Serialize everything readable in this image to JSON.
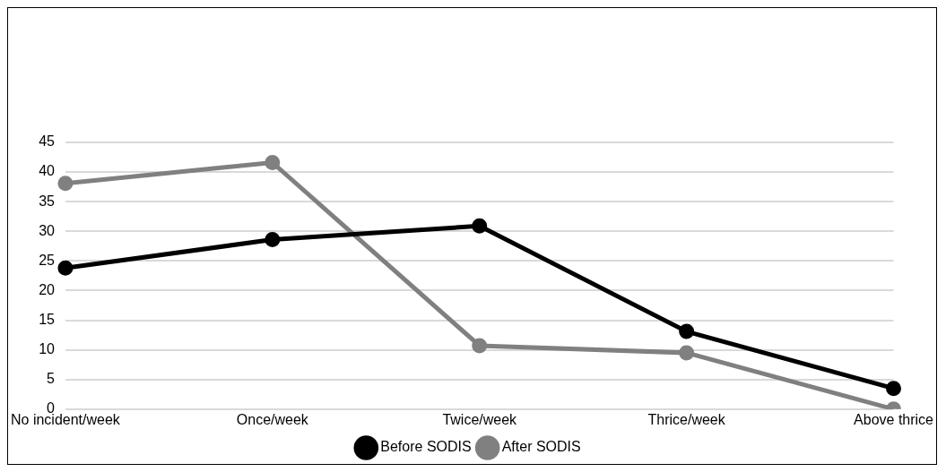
{
  "chart_data": {
    "type": "line",
    "categories": [
      "No incident/week",
      "Once/week",
      "Twice/week",
      "Thrice/week",
      "Above thrice"
    ],
    "series": [
      {
        "name": "Before SODIS",
        "color": "#000000",
        "values": [
          23.8,
          28.6,
          30.9,
          13.1,
          3.5
        ]
      },
      {
        "name": "After SODIS",
        "color": "#808080",
        "values": [
          38.1,
          41.6,
          10.7,
          9.5,
          0
        ]
      }
    ],
    "ylim": [
      0,
      45
    ],
    "yticks": [
      0,
      5,
      10,
      15,
      20,
      25,
      30,
      35,
      40,
      45
    ],
    "grid": "y",
    "legend": "bottom",
    "marker": "circle",
    "line_style": "solid"
  }
}
